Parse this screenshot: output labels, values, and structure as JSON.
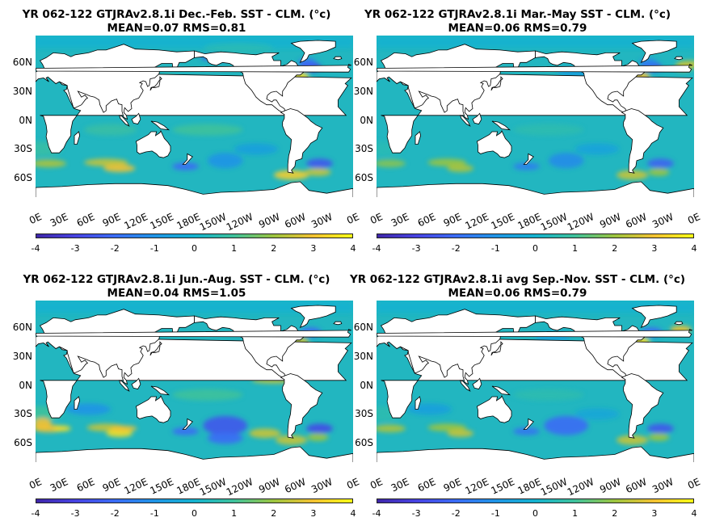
{
  "panels": [
    {
      "title_line1": "YR 062-122 GTJRAv2.8.1i  Dec.-Feb. SST - CLM. (°c)",
      "title_line2": "MEAN=0.07   RMS=0.81"
    },
    {
      "title_line1": "YR 062-122 GTJRAv2.8.1i Mar.-May SST - CLM. (°c)",
      "title_line2": "MEAN=0.06   RMS=0.79"
    },
    {
      "title_line1": "YR 062-122 GTJRAv2.8.1i Jun.-Aug. SST - CLM. (°c)",
      "title_line2": "MEAN=0.04   RMS=1.05"
    },
    {
      "title_line1": "YR 062-122 GTJRAv2.8.1i avg Sep.-Nov. SST - CLM. (°c)",
      "title_line2": "MEAN=0.06   RMS=0.79"
    }
  ],
  "lat_labels": [
    "60N",
    "30N",
    "0N",
    "30S",
    "60S"
  ],
  "lon_labels": [
    "0E",
    "30E",
    "60E",
    "90E",
    "120E",
    "150E",
    "180E",
    "150W",
    "120W",
    "90W",
    "60W",
    "30W",
    "0E"
  ],
  "colorbar_ticks": [
    "-4",
    "-3",
    "-2",
    "-1",
    "0",
    "1",
    "2",
    "3",
    "4"
  ],
  "colorbar_range": [
    -4,
    4
  ],
  "colormap": [
    "#3e26a8",
    "#4743e2",
    "#3a6cf4",
    "#1f94e5",
    "#14b2ce",
    "#3ec19b",
    "#9bc43f",
    "#f3c132",
    "#f9fb15"
  ],
  "colors": {
    "ocean_base": "#22b6c0",
    "land": "#ffffff",
    "polar_fill": "#14b2ce"
  }
}
